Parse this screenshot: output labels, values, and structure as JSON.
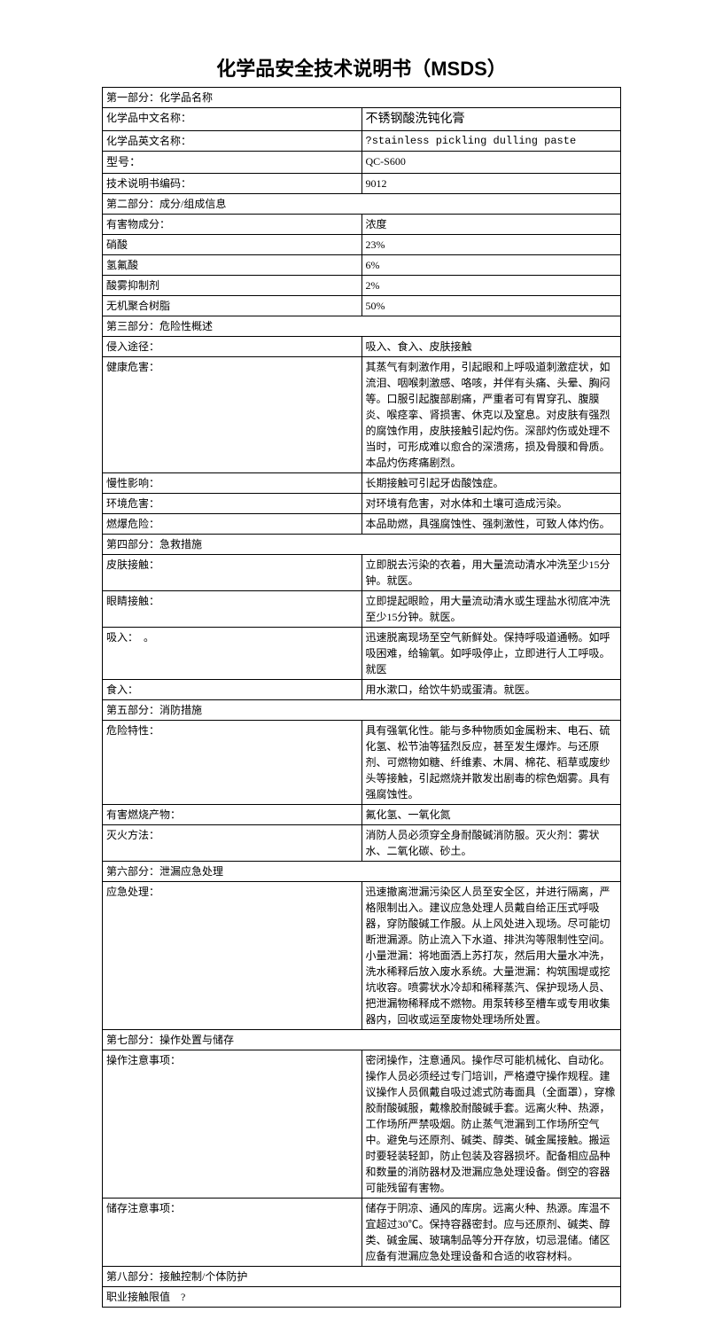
{
  "title": "化学品安全技术说明书（MSDS）",
  "rows": [
    {
      "type": "section",
      "text": "第一部分：化学品名称"
    },
    {
      "label": "化学品中文名称：",
      "value": "不锈钢酸洗钝化膏",
      "valueSize": "14px"
    },
    {
      "label": "化学品英文名称：",
      "value": "?stainless pickling dulling paste",
      "mono": true
    },
    {
      "label": "型号：",
      "value": "QC-S600",
      "labelSize": "13px"
    },
    {
      "label": "技术说明书编码：",
      "value": "9012"
    },
    {
      "type": "section",
      "text": "第二部分：成分/组成信息"
    },
    {
      "label": "有害物成分：",
      "value": "浓度"
    },
    {
      "label": "硝酸",
      "value": "23%"
    },
    {
      "label": "氢氟酸",
      "value": "6%"
    },
    {
      "label": "酸雾抑制剂",
      "value": "2%"
    },
    {
      "label": "无机聚合树脂",
      "value": "50%"
    },
    {
      "type": "section",
      "text": "第三部分：危险性概述"
    },
    {
      "label": "侵入途径：",
      "value": "吸入、食入、皮肤接触"
    },
    {
      "label": "健康危害：",
      "value": "其蒸气有刺激作用，引起眼和上呼吸道刺激症状，如流泪、咽喉刺激感、咯咳，并伴有头痛、头晕、胸闷等。口服引起腹部剧痛，严重者可有胃穿孔、腹膜炎、喉痉挛、肾损害、休克以及窒息。对皮肤有强烈的腐蚀作用，皮肤接触引起灼伤。深部灼伤或处理不当时，可形成难以愈合的深溃疡，损及骨膜和骨质。本品灼伤疼痛剧烈。"
    },
    {
      "label": "慢性影响：",
      "value": "长期接触可引起牙齿酸蚀症。"
    },
    {
      "label": "环境危害：",
      "value": "对环境有危害，对水体和土壤可造成污染。"
    },
    {
      "label": "燃爆危险：",
      "value": "本品助燃，具强腐蚀性、强刺激性，可致人体灼伤。"
    },
    {
      "type": "section",
      "text": "第四部分：急救措施"
    },
    {
      "label": "皮肤接触：",
      "value": "立即脱去污染的衣着，用大量流动清水冲洗至少15分钟。就医。"
    },
    {
      "label": "眼睛接触：",
      "value": "立即提起眼睑，用大量流动清水或生理盐水彻底冲洗至少15分钟。就医。"
    },
    {
      "label": "吸入：　。",
      "value": "迅速脱离现场至空气新鲜处。保持呼吸道通畅。如呼吸困难，给输氧。如呼吸停止，立即进行人工呼吸。就医"
    },
    {
      "label": "食入：",
      "value": "用水漱口，给饮牛奶或蛋清。就医。"
    },
    {
      "type": "section",
      "text": "第五部分：消防措施"
    },
    {
      "label": "危险特性：",
      "value": "具有强氧化性。能与多种物质如金属粉末、电石、硫化氢、松节油等猛烈反应，甚至发生爆炸。与还原剂、可燃物如糖、纤维素、木屑、棉花、稻草或废纱头等接触，引起燃烧并散发出剧毒的棕色烟雾。具有强腐蚀性。"
    },
    {
      "label": "有害燃烧产物：",
      "value": "氟化氢、一氧化氮"
    },
    {
      "label": "灭火方法：",
      "value": "消防人员必须穿全身耐酸碱消防服。灭火剂：雾状水、二氧化碳、砂土。"
    },
    {
      "type": "section",
      "text": "第六部分：泄漏应急处理"
    },
    {
      "label": "应急处理：",
      "value": "迅速撤离泄漏污染区人员至安全区，并进行隔离，严格限制出入。建议应急处理人员戴自给正压式呼吸器，穿防酸碱工作服。从上风处进入现场。尽可能切断泄漏源。防止流入下水道、排洪沟等限制性空间。小量泄漏：将地面洒上苏打灰，然后用大量水冲洗，洗水稀释后放入废水系统。大量泄漏：构筑围堤或挖坑收容。喷雾状水冷却和稀释蒸汽、保护现场人员、把泄漏物稀释成不燃物。用泵转移至槽车或专用收集器内，回收或运至废物处理场所处置。"
    },
    {
      "type": "section",
      "text": "第七部分：操作处置与储存"
    },
    {
      "label": "操作注意事项：",
      "value": "密闭操作，注意通风。操作尽可能机械化、自动化。操作人员必须经过专门培训，严格遵守操作规程。建议操作人员佩戴自吸过滤式防毒面具（全面罩），穿橡胶耐酸碱服，戴橡胶耐酸碱手套。远离火种、热源，工作场所严禁吸烟。防止蒸气泄漏到工作场所空气中。避免与还原剂、碱类、醇类、碱金属接触。搬运时要轻装轻卸，防止包装及容器损坏。配备相应品种和数量的消防器材及泄漏应急处理设备。倒空的容器可能残留有害物。"
    },
    {
      "label": "储存注意事项：",
      "value": "储存于阴凉、通风的库房。远离火种、热源。库温不宜超过30℃。保持容器密封。应与还原剂、碱类、醇类、碱金属、玻璃制品等分开存放，切忌混储。储区应备有泄漏应急处理设备和合适的收容材料。"
    },
    {
      "type": "section",
      "text": "第八部分：接触控制/个体防护"
    },
    {
      "type": "section",
      "text": "职业接触限值　?"
    }
  ]
}
